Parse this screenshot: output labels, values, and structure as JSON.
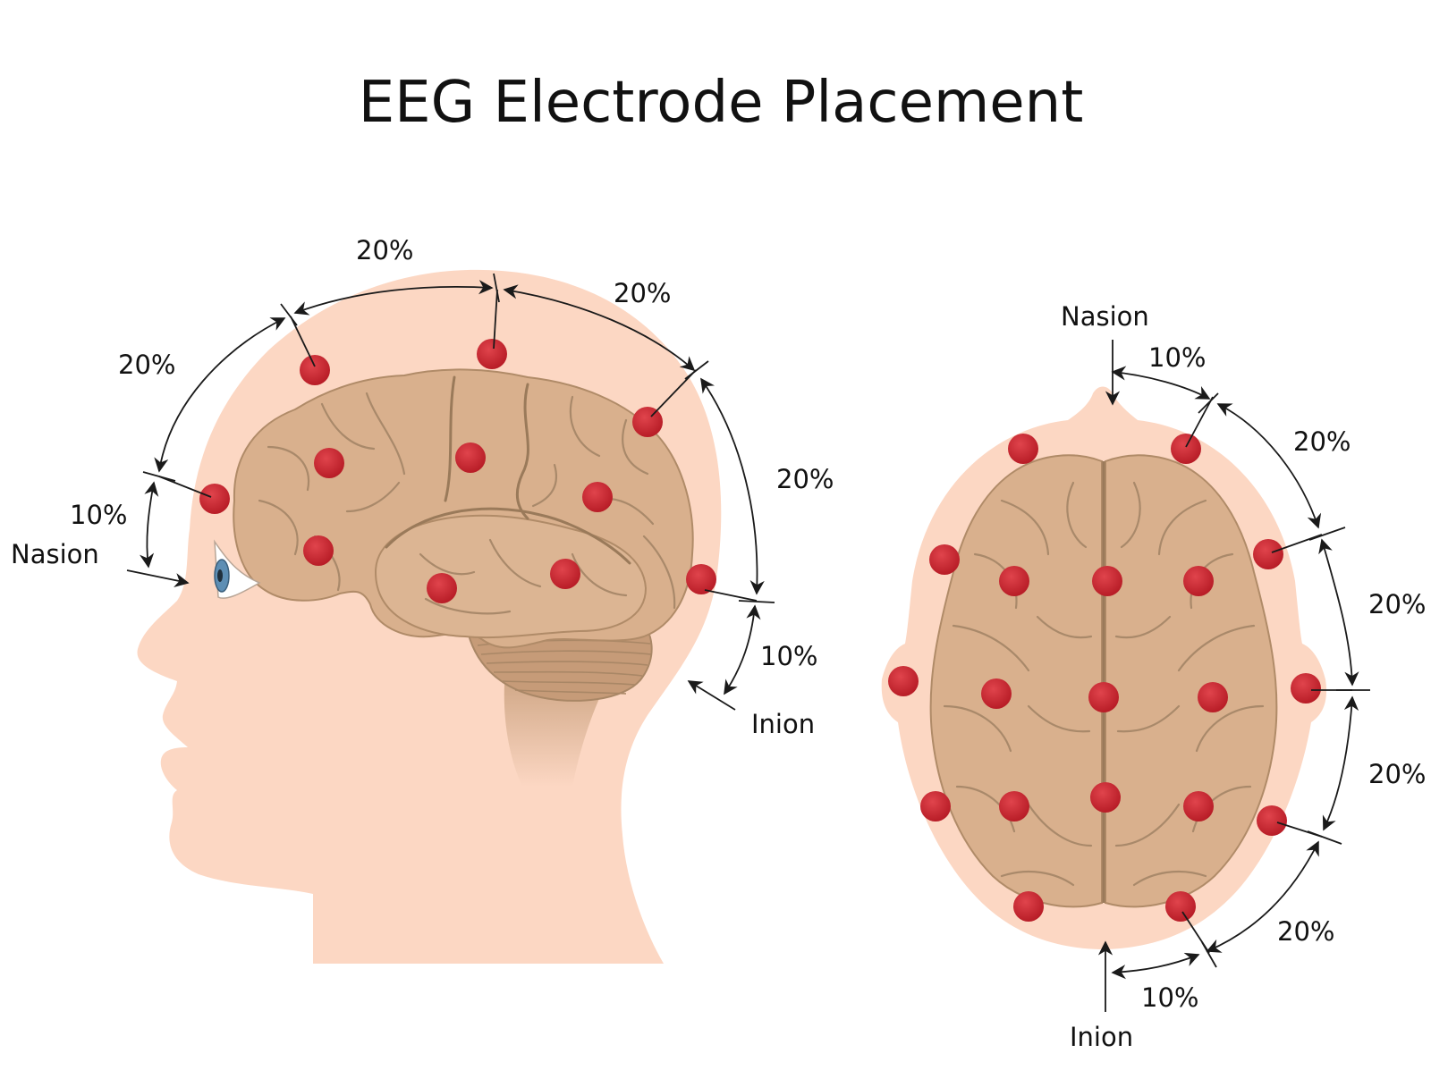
{
  "title": "EEG Electrode Placement",
  "colors": {
    "skin": "#fcd7c3",
    "brain": "#d9b08d",
    "brain_shade": "#c99f7c",
    "cerebellum": "#c69b78",
    "electrode": "#c8242e",
    "line": "#1a1a1a"
  },
  "icons": {
    "electrode": "red-dot",
    "eye": "eye-icon"
  },
  "side_view": {
    "labels": {
      "top_left": "20%",
      "top_right": "20%",
      "front_upper": "20%",
      "back": "20%",
      "front_lower": "10%",
      "back_lower": "10%",
      "nasion": "Nasion",
      "inion": "Inion"
    }
  },
  "top_view": {
    "labels": {
      "nasion": "Nasion",
      "front_10": "10%",
      "right_20_a": "20%",
      "right_20_b": "20%",
      "right_20_c": "20%",
      "back_20": "20%",
      "back_10": "10%",
      "inion": "Inion"
    }
  }
}
